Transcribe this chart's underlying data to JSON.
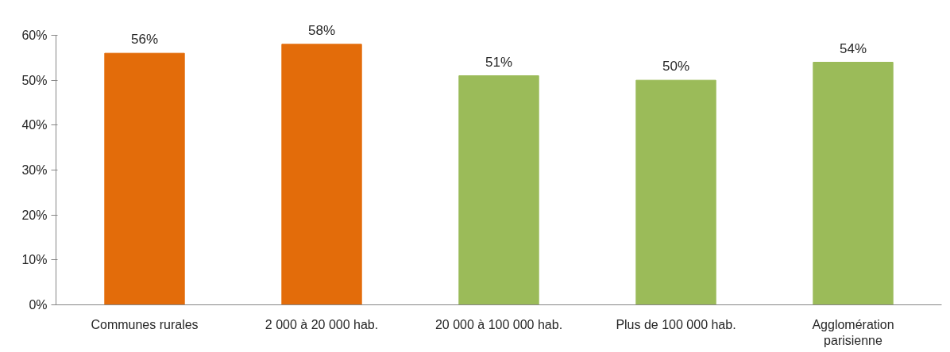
{
  "chart_data": {
    "type": "bar",
    "categories": [
      "Communes rurales",
      "2 000 à 20 000 hab.",
      "20 000 à 100 000 hab.",
      "Plus de 100 000 hab.",
      "Agglomération\nparisienne"
    ],
    "values": [
      56,
      58,
      51,
      50,
      54
    ],
    "colors": [
      "#e36c0a",
      "#e36c0a",
      "#9bbb59",
      "#9bbb59",
      "#9bbb59"
    ],
    "value_labels": [
      "56%",
      "58%",
      "51%",
      "50%",
      "54%"
    ],
    "ylim": [
      0,
      60
    ],
    "yticks": [
      {
        "value": 0,
        "label": "0%"
      },
      {
        "value": 10,
        "label": "10%"
      },
      {
        "value": 20,
        "label": "20%"
      },
      {
        "value": 30,
        "label": "30%"
      },
      {
        "value": 40,
        "label": "40%"
      },
      {
        "value": 50,
        "label": "50%"
      },
      {
        "value": 60,
        "label": "60%"
      }
    ],
    "grid": false
  }
}
